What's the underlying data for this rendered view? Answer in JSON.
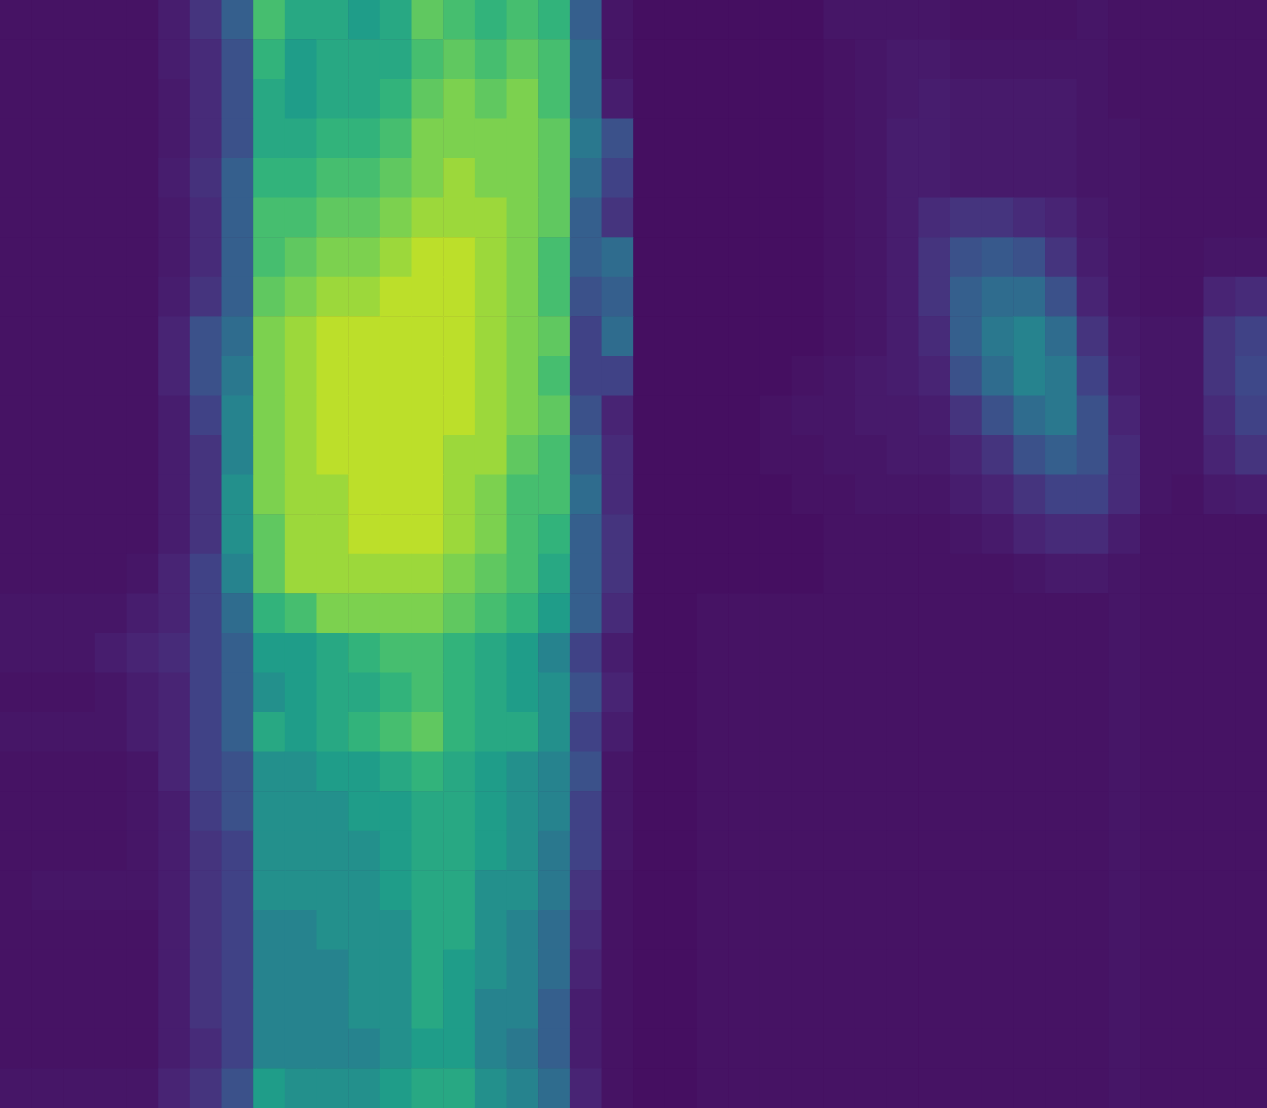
{
  "chart_data": {
    "type": "heatmap",
    "tick_labels": false,
    "color_range": [
      0,
      1
    ],
    "cells": [
      [
        0.05,
        0.05,
        0.05,
        0.05,
        0.05,
        0.08,
        0.15,
        0.3,
        0.7,
        0.6,
        0.6,
        0.55,
        0.6,
        0.75,
        0.7,
        0.65,
        0.7,
        0.65,
        0.3,
        0.06,
        0.04,
        0.04,
        0.04,
        0.04,
        0.04,
        0.04,
        0.06,
        0.06,
        0.06,
        0.06,
        0.05,
        0.05,
        0.05,
        0.05,
        0.06,
        0.05,
        0.05,
        0.05,
        0.05,
        0.05
      ],
      [
        0.05,
        0.05,
        0.05,
        0.05,
        0.05,
        0.08,
        0.12,
        0.25,
        0.65,
        0.55,
        0.6,
        0.6,
        0.6,
        0.7,
        0.75,
        0.7,
        0.75,
        0.7,
        0.35,
        0.06,
        0.04,
        0.04,
        0.04,
        0.04,
        0.04,
        0.04,
        0.05,
        0.06,
        0.07,
        0.07,
        0.06,
        0.06,
        0.06,
        0.06,
        0.06,
        0.05,
        0.05,
        0.05,
        0.05,
        0.05
      ],
      [
        0.05,
        0.05,
        0.05,
        0.05,
        0.05,
        0.07,
        0.12,
        0.25,
        0.6,
        0.55,
        0.6,
        0.6,
        0.65,
        0.75,
        0.8,
        0.75,
        0.8,
        0.7,
        0.35,
        0.08,
        0.04,
        0.04,
        0.04,
        0.04,
        0.04,
        0.04,
        0.05,
        0.06,
        0.07,
        0.08,
        0.07,
        0.07,
        0.07,
        0.07,
        0.06,
        0.05,
        0.05,
        0.05,
        0.05,
        0.05
      ],
      [
        0.05,
        0.05,
        0.05,
        0.05,
        0.05,
        0.07,
        0.12,
        0.25,
        0.6,
        0.6,
        0.65,
        0.65,
        0.7,
        0.8,
        0.8,
        0.8,
        0.8,
        0.75,
        0.4,
        0.25,
        0.04,
        0.04,
        0.04,
        0.04,
        0.04,
        0.04,
        0.05,
        0.06,
        0.08,
        0.08,
        0.07,
        0.07,
        0.07,
        0.07,
        0.06,
        0.06,
        0.05,
        0.05,
        0.05,
        0.05
      ],
      [
        0.05,
        0.05,
        0.05,
        0.05,
        0.05,
        0.08,
        0.14,
        0.3,
        0.65,
        0.65,
        0.7,
        0.7,
        0.75,
        0.8,
        0.85,
        0.8,
        0.8,
        0.75,
        0.35,
        0.2,
        0.04,
        0.04,
        0.04,
        0.04,
        0.04,
        0.04,
        0.05,
        0.06,
        0.08,
        0.08,
        0.07,
        0.07,
        0.07,
        0.07,
        0.06,
        0.06,
        0.05,
        0.05,
        0.05,
        0.05
      ],
      [
        0.05,
        0.05,
        0.05,
        0.05,
        0.05,
        0.07,
        0.12,
        0.3,
        0.7,
        0.7,
        0.75,
        0.75,
        0.8,
        0.85,
        0.85,
        0.85,
        0.8,
        0.75,
        0.3,
        0.15,
        0.04,
        0.04,
        0.04,
        0.04,
        0.04,
        0.04,
        0.05,
        0.06,
        0.08,
        0.12,
        0.15,
        0.15,
        0.12,
        0.1,
        0.07,
        0.06,
        0.05,
        0.05,
        0.05,
        0.05
      ],
      [
        0.05,
        0.05,
        0.05,
        0.05,
        0.05,
        0.07,
        0.12,
        0.3,
        0.7,
        0.75,
        0.8,
        0.8,
        0.85,
        0.9,
        0.9,
        0.85,
        0.8,
        0.7,
        0.3,
        0.35,
        0.04,
        0.04,
        0.04,
        0.04,
        0.04,
        0.04,
        0.05,
        0.06,
        0.08,
        0.15,
        0.25,
        0.28,
        0.25,
        0.15,
        0.08,
        0.06,
        0.05,
        0.05,
        0.06,
        0.06
      ],
      [
        0.05,
        0.05,
        0.05,
        0.05,
        0.05,
        0.08,
        0.15,
        0.3,
        0.75,
        0.8,
        0.85,
        0.85,
        0.9,
        0.9,
        0.9,
        0.85,
        0.8,
        0.7,
        0.25,
        0.3,
        0.04,
        0.04,
        0.04,
        0.04,
        0.04,
        0.04,
        0.05,
        0.06,
        0.08,
        0.15,
        0.3,
        0.35,
        0.35,
        0.25,
        0.1,
        0.06,
        0.05,
        0.05,
        0.1,
        0.12
      ],
      [
        0.05,
        0.05,
        0.05,
        0.05,
        0.05,
        0.1,
        0.25,
        0.35,
        0.8,
        0.85,
        0.9,
        0.9,
        0.9,
        0.9,
        0.9,
        0.85,
        0.8,
        0.75,
        0.2,
        0.35,
        0.04,
        0.04,
        0.04,
        0.04,
        0.04,
        0.04,
        0.05,
        0.06,
        0.08,
        0.12,
        0.3,
        0.4,
        0.45,
        0.35,
        0.15,
        0.07,
        0.06,
        0.06,
        0.15,
        0.2
      ],
      [
        0.05,
        0.05,
        0.05,
        0.05,
        0.05,
        0.1,
        0.25,
        0.4,
        0.8,
        0.85,
        0.9,
        0.9,
        0.9,
        0.9,
        0.9,
        0.85,
        0.8,
        0.7,
        0.2,
        0.2,
        0.04,
        0.04,
        0.04,
        0.04,
        0.04,
        0.05,
        0.06,
        0.07,
        0.08,
        0.1,
        0.25,
        0.35,
        0.45,
        0.4,
        0.2,
        0.08,
        0.06,
        0.06,
        0.15,
        0.22
      ],
      [
        0.05,
        0.05,
        0.05,
        0.05,
        0.05,
        0.08,
        0.2,
        0.45,
        0.8,
        0.85,
        0.9,
        0.9,
        0.9,
        0.9,
        0.9,
        0.85,
        0.8,
        0.75,
        0.25,
        0.1,
        0.04,
        0.04,
        0.04,
        0.04,
        0.05,
        0.06,
        0.06,
        0.07,
        0.07,
        0.08,
        0.15,
        0.25,
        0.35,
        0.4,
        0.25,
        0.1,
        0.06,
        0.06,
        0.12,
        0.2
      ],
      [
        0.05,
        0.05,
        0.05,
        0.05,
        0.05,
        0.08,
        0.15,
        0.45,
        0.8,
        0.85,
        0.9,
        0.9,
        0.9,
        0.9,
        0.85,
        0.85,
        0.75,
        0.7,
        0.3,
        0.12,
        0.04,
        0.04,
        0.04,
        0.04,
        0.05,
        0.05,
        0.06,
        0.06,
        0.07,
        0.07,
        0.1,
        0.15,
        0.25,
        0.3,
        0.25,
        0.12,
        0.06,
        0.06,
        0.1,
        0.15
      ],
      [
        0.05,
        0.05,
        0.05,
        0.05,
        0.05,
        0.08,
        0.15,
        0.5,
        0.8,
        0.85,
        0.85,
        0.9,
        0.9,
        0.9,
        0.85,
        0.8,
        0.7,
        0.7,
        0.35,
        0.12,
        0.04,
        0.04,
        0.04,
        0.04,
        0.04,
        0.05,
        0.05,
        0.06,
        0.06,
        0.06,
        0.08,
        0.1,
        0.15,
        0.2,
        0.2,
        0.12,
        0.06,
        0.05,
        0.07,
        0.08
      ],
      [
        0.05,
        0.05,
        0.05,
        0.05,
        0.05,
        0.08,
        0.15,
        0.5,
        0.75,
        0.85,
        0.85,
        0.9,
        0.9,
        0.9,
        0.85,
        0.8,
        0.7,
        0.65,
        0.3,
        0.15,
        0.04,
        0.04,
        0.04,
        0.04,
        0.04,
        0.04,
        0.05,
        0.05,
        0.05,
        0.05,
        0.06,
        0.07,
        0.1,
        0.12,
        0.12,
        0.08,
        0.05,
        0.05,
        0.05,
        0.05
      ],
      [
        0.05,
        0.05,
        0.05,
        0.05,
        0.06,
        0.1,
        0.2,
        0.45,
        0.75,
        0.85,
        0.85,
        0.85,
        0.85,
        0.85,
        0.8,
        0.75,
        0.7,
        0.6,
        0.3,
        0.15,
        0.04,
        0.04,
        0.04,
        0.04,
        0.04,
        0.04,
        0.05,
        0.05,
        0.05,
        0.05,
        0.05,
        0.05,
        0.06,
        0.07,
        0.07,
        0.06,
        0.05,
        0.05,
        0.05,
        0.05
      ],
      [
        0.06,
        0.06,
        0.06,
        0.06,
        0.08,
        0.1,
        0.2,
        0.35,
        0.65,
        0.7,
        0.8,
        0.8,
        0.8,
        0.8,
        0.75,
        0.7,
        0.65,
        0.55,
        0.3,
        0.12,
        0.04,
        0.04,
        0.05,
        0.05,
        0.05,
        0.05,
        0.05,
        0.05,
        0.05,
        0.05,
        0.05,
        0.05,
        0.05,
        0.05,
        0.05,
        0.06,
        0.05,
        0.05,
        0.05,
        0.05
      ],
      [
        0.06,
        0.06,
        0.06,
        0.08,
        0.1,
        0.12,
        0.2,
        0.3,
        0.55,
        0.55,
        0.6,
        0.65,
        0.7,
        0.7,
        0.65,
        0.6,
        0.55,
        0.45,
        0.2,
        0.08,
        0.04,
        0.04,
        0.05,
        0.05,
        0.05,
        0.05,
        0.05,
        0.05,
        0.05,
        0.05,
        0.05,
        0.05,
        0.05,
        0.05,
        0.05,
        0.06,
        0.05,
        0.05,
        0.05,
        0.05
      ],
      [
        0.05,
        0.05,
        0.05,
        0.06,
        0.08,
        0.1,
        0.2,
        0.3,
        0.5,
        0.55,
        0.6,
        0.6,
        0.65,
        0.7,
        0.65,
        0.6,
        0.55,
        0.5,
        0.25,
        0.1,
        0.04,
        0.04,
        0.05,
        0.05,
        0.05,
        0.05,
        0.05,
        0.05,
        0.05,
        0.05,
        0.05,
        0.05,
        0.05,
        0.05,
        0.05,
        0.06,
        0.05,
        0.05,
        0.05,
        0.05
      ],
      [
        0.06,
        0.06,
        0.06,
        0.06,
        0.08,
        0.1,
        0.2,
        0.3,
        0.6,
        0.55,
        0.6,
        0.65,
        0.7,
        0.75,
        0.65,
        0.6,
        0.6,
        0.5,
        0.2,
        0.08,
        0.04,
        0.04,
        0.05,
        0.05,
        0.05,
        0.05,
        0.05,
        0.05,
        0.05,
        0.05,
        0.05,
        0.05,
        0.05,
        0.05,
        0.05,
        0.06,
        0.05,
        0.05,
        0.05,
        0.05
      ],
      [
        0.05,
        0.05,
        0.05,
        0.05,
        0.06,
        0.1,
        0.2,
        0.25,
        0.5,
        0.5,
        0.55,
        0.55,
        0.6,
        0.65,
        0.6,
        0.55,
        0.5,
        0.45,
        0.25,
        0.06,
        0.04,
        0.04,
        0.05,
        0.05,
        0.05,
        0.05,
        0.05,
        0.05,
        0.05,
        0.05,
        0.05,
        0.05,
        0.05,
        0.05,
        0.05,
        0.06,
        0.05,
        0.05,
        0.05,
        0.05
      ],
      [
        0.05,
        0.05,
        0.05,
        0.05,
        0.06,
        0.08,
        0.18,
        0.25,
        0.5,
        0.5,
        0.5,
        0.55,
        0.55,
        0.6,
        0.6,
        0.55,
        0.5,
        0.45,
        0.2,
        0.06,
        0.04,
        0.04,
        0.05,
        0.05,
        0.05,
        0.05,
        0.05,
        0.05,
        0.05,
        0.05,
        0.05,
        0.05,
        0.05,
        0.05,
        0.05,
        0.06,
        0.05,
        0.05,
        0.05,
        0.05
      ],
      [
        0.05,
        0.05,
        0.05,
        0.05,
        0.06,
        0.08,
        0.15,
        0.2,
        0.5,
        0.5,
        0.5,
        0.5,
        0.55,
        0.6,
        0.6,
        0.55,
        0.5,
        0.4,
        0.2,
        0.06,
        0.04,
        0.04,
        0.05,
        0.05,
        0.05,
        0.05,
        0.05,
        0.05,
        0.05,
        0.05,
        0.05,
        0.05,
        0.05,
        0.05,
        0.05,
        0.06,
        0.05,
        0.05,
        0.05,
        0.05
      ],
      [
        0.05,
        0.06,
        0.06,
        0.06,
        0.06,
        0.08,
        0.15,
        0.2,
        0.5,
        0.5,
        0.5,
        0.5,
        0.55,
        0.6,
        0.6,
        0.5,
        0.5,
        0.4,
        0.15,
        0.05,
        0.04,
        0.04,
        0.05,
        0.05,
        0.05,
        0.05,
        0.05,
        0.05,
        0.05,
        0.05,
        0.05,
        0.05,
        0.05,
        0.05,
        0.05,
        0.06,
        0.05,
        0.05,
        0.05,
        0.05
      ],
      [
        0.05,
        0.05,
        0.05,
        0.05,
        0.05,
        0.08,
        0.15,
        0.2,
        0.45,
        0.45,
        0.5,
        0.5,
        0.5,
        0.6,
        0.6,
        0.5,
        0.45,
        0.35,
        0.12,
        0.05,
        0.04,
        0.04,
        0.05,
        0.05,
        0.05,
        0.05,
        0.05,
        0.05,
        0.05,
        0.05,
        0.05,
        0.05,
        0.05,
        0.05,
        0.05,
        0.06,
        0.05,
        0.05,
        0.05,
        0.05
      ],
      [
        0.05,
        0.05,
        0.05,
        0.05,
        0.05,
        0.08,
        0.15,
        0.2,
        0.45,
        0.45,
        0.45,
        0.5,
        0.5,
        0.6,
        0.55,
        0.5,
        0.45,
        0.35,
        0.1,
        0.05,
        0.04,
        0.04,
        0.05,
        0.05,
        0.05,
        0.05,
        0.05,
        0.05,
        0.05,
        0.05,
        0.05,
        0.05,
        0.05,
        0.05,
        0.05,
        0.06,
        0.05,
        0.05,
        0.05,
        0.05
      ],
      [
        0.05,
        0.05,
        0.05,
        0.05,
        0.05,
        0.08,
        0.15,
        0.2,
        0.45,
        0.45,
        0.45,
        0.5,
        0.5,
        0.6,
        0.55,
        0.45,
        0.45,
        0.3,
        0.08,
        0.05,
        0.04,
        0.04,
        0.05,
        0.05,
        0.05,
        0.05,
        0.05,
        0.05,
        0.05,
        0.05,
        0.05,
        0.05,
        0.05,
        0.05,
        0.05,
        0.06,
        0.05,
        0.05,
        0.05,
        0.05
      ],
      [
        0.05,
        0.05,
        0.05,
        0.05,
        0.05,
        0.08,
        0.12,
        0.2,
        0.45,
        0.45,
        0.45,
        0.45,
        0.5,
        0.55,
        0.55,
        0.45,
        0.4,
        0.3,
        0.08,
        0.05,
        0.04,
        0.04,
        0.05,
        0.05,
        0.05,
        0.05,
        0.05,
        0.05,
        0.05,
        0.05,
        0.05,
        0.05,
        0.05,
        0.05,
        0.05,
        0.06,
        0.05,
        0.05,
        0.05,
        0.05
      ],
      [
        0.06,
        0.06,
        0.06,
        0.06,
        0.06,
        0.1,
        0.15,
        0.25,
        0.55,
        0.5,
        0.5,
        0.5,
        0.55,
        0.6,
        0.6,
        0.5,
        0.45,
        0.35,
        0.1,
        0.05,
        0.04,
        0.04,
        0.05,
        0.05,
        0.05,
        0.05,
        0.05,
        0.05,
        0.05,
        0.05,
        0.05,
        0.05,
        0.05,
        0.05,
        0.05,
        0.06,
        0.05,
        0.05,
        0.05,
        0.05
      ]
    ]
  }
}
